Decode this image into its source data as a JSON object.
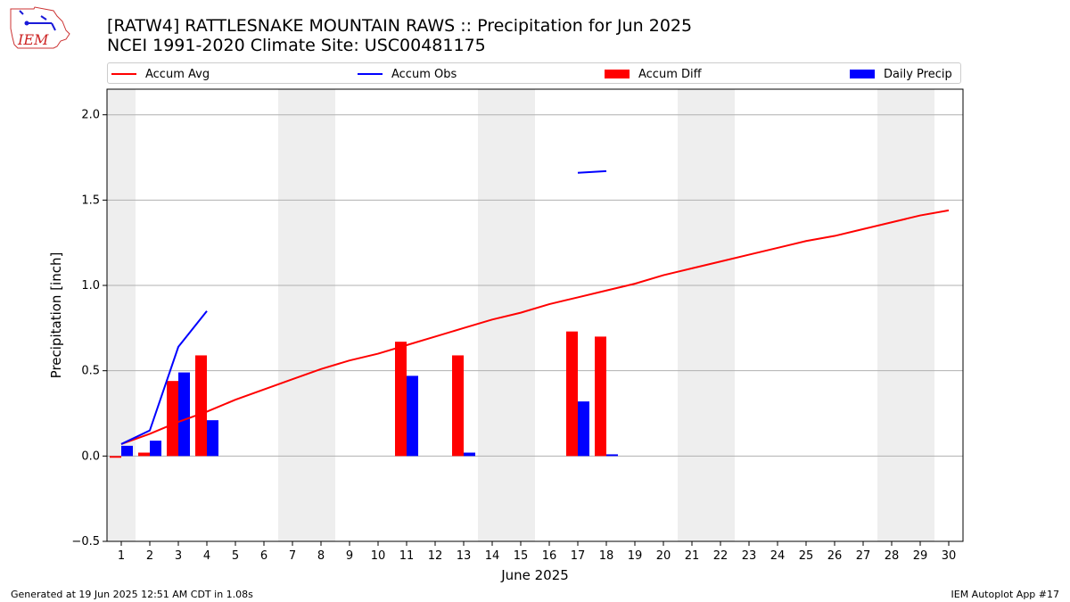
{
  "header": {
    "title_line1": "[RATW4] RATTLESNAKE MOUNTAIN RAWS :: Precipitation for Jun 2025",
    "title_line2": "NCEI 1991-2020 Climate Site: USC00481175",
    "logo_text": "IEM"
  },
  "legend": {
    "placement": "top",
    "items": [
      {
        "label": "Accum Avg",
        "kind": "line",
        "color": "#ff0000"
      },
      {
        "label": "Accum Obs",
        "kind": "line",
        "color": "#0000ff"
      },
      {
        "label": "Accum Diff",
        "kind": "bar",
        "color": "#ff0000"
      },
      {
        "label": "Daily Precip",
        "kind": "bar",
        "color": "#0000ff"
      }
    ]
  },
  "chart_data": {
    "type": "bar",
    "xlabel": "June 2025",
    "ylabel": "Precipitation [inch]",
    "xlim": [
      1,
      30
    ],
    "ylim": [
      -0.5,
      2.15
    ],
    "yticks": [
      -0.5,
      0.0,
      0.5,
      1.0,
      1.5,
      2.0
    ],
    "ytick_labels": [
      "−0.5",
      "0.0",
      "0.5",
      "1.0",
      "1.5",
      "2.0"
    ],
    "grid": "horizontal",
    "weekend_days_shaded": [
      1,
      7,
      8,
      14,
      15,
      21,
      22,
      28,
      29
    ],
    "days": [
      1,
      2,
      3,
      4,
      5,
      6,
      7,
      8,
      9,
      10,
      11,
      12,
      13,
      14,
      15,
      16,
      17,
      18,
      19,
      20,
      21,
      22,
      23,
      24,
      25,
      26,
      27,
      28,
      29,
      30
    ],
    "series": [
      {
        "name": "Accum Avg",
        "kind": "line",
        "color": "#ff0000",
        "x": [
          1,
          2,
          3,
          4,
          5,
          6,
          7,
          8,
          9,
          10,
          11,
          12,
          13,
          14,
          15,
          16,
          17,
          18,
          19,
          20,
          21,
          22,
          23,
          24,
          25,
          26,
          27,
          28,
          29,
          30
        ],
        "values": [
          0.07,
          0.13,
          0.2,
          0.26,
          0.33,
          0.39,
          0.45,
          0.51,
          0.56,
          0.6,
          0.65,
          0.7,
          0.75,
          0.8,
          0.84,
          0.89,
          0.93,
          0.97,
          1.01,
          1.06,
          1.1,
          1.14,
          1.18,
          1.22,
          1.26,
          1.29,
          1.33,
          1.37,
          1.41,
          1.44
        ]
      },
      {
        "name": "Accum Obs",
        "kind": "line",
        "color": "#0000ff",
        "segments": [
          {
            "x": [
              1,
              2,
              3,
              4
            ],
            "values": [
              0.07,
              0.15,
              0.64,
              0.85
            ]
          },
          {
            "x": [
              17,
              18
            ],
            "values": [
              1.66,
              1.67
            ]
          }
        ]
      },
      {
        "name": "Accum Diff",
        "kind": "bar",
        "color": "#ff0000",
        "x": [
          1,
          2,
          3,
          4,
          11,
          13,
          17,
          18
        ],
        "values": [
          -0.01,
          0.02,
          0.44,
          0.59,
          0.67,
          0.59,
          0.73,
          0.7
        ]
      },
      {
        "name": "Daily Precip",
        "kind": "bar",
        "color": "#0000ff",
        "x": [
          1,
          2,
          3,
          4,
          11,
          13,
          17,
          18
        ],
        "values": [
          0.06,
          0.09,
          0.49,
          0.21,
          0.47,
          0.02,
          0.32,
          0.01
        ]
      }
    ]
  },
  "footer": {
    "left": "Generated at 19 Jun 2025 12:51 AM CDT in 1.08s",
    "right": "IEM Autoplot App #17"
  }
}
